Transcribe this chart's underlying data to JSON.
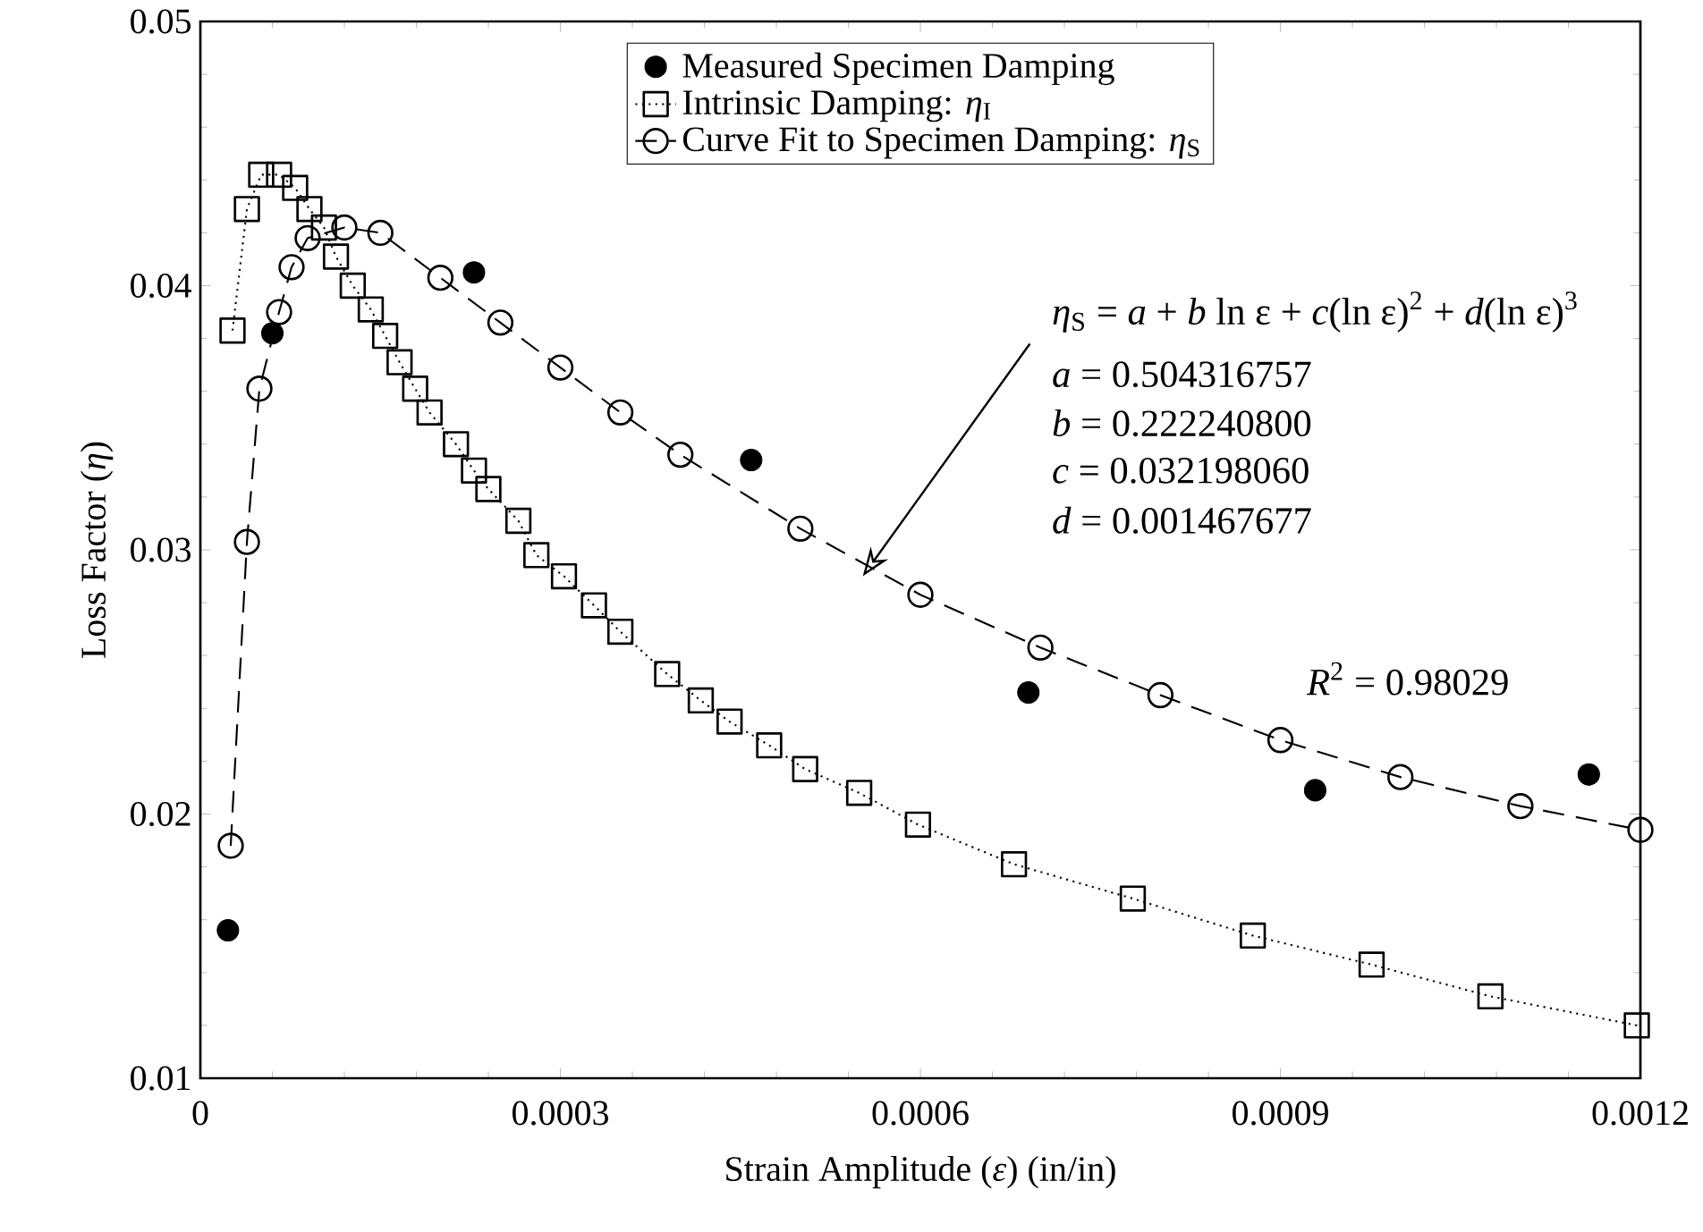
{
  "chart_data": {
    "type": "line",
    "xlabel": "Strain Amplitude (*ε*) (in/in)",
    "ylabel": "Loss Factor (*η*)",
    "xlim": [
      0,
      0.0012
    ],
    "ylim": [
      0.01,
      0.05
    ],
    "xticks": [
      0,
      0.0003,
      0.0006,
      0.0009,
      0.0012
    ],
    "yticks": [
      0.01,
      0.02,
      0.03,
      0.04,
      0.05
    ],
    "legend": "top",
    "grid": false,
    "series": [
      {
        "name": "Measured Specimen Damping",
        "type": "scatter",
        "marker": "circle",
        "color": "#000000",
        "x": [
          2.3e-05,
          6e-05,
          0.000228,
          0.000459,
          0.00069,
          0.000929,
          0.001157
        ],
        "values": [
          0.0156,
          0.0382,
          0.0405,
          0.0334,
          0.0246,
          0.0209,
          0.0215
        ]
      },
      {
        "name": "Intrinsic Damping: *η*$_{I}$",
        "marker": "square",
        "line_style": "dotted",
        "color": "#000000",
        "x": [
          2.68e-05,
          3.88e-05,
          5.07e-05,
          6.56e-05,
          7.9e-05,
          9.09e-05,
          0.000103,
          0.000113,
          0.000127,
          0.000142,
          0.000154,
          0.000166,
          0.000179,
          0.000191,
          0.000213,
          0.000228,
          0.00024,
          0.000265,
          0.00028,
          0.000303,
          0.000328,
          0.00035,
          0.000389,
          0.000417,
          0.000441,
          0.000474,
          0.000504,
          0.000549,
          0.000598,
          0.000678,
          0.000777,
          0.000877,
          0.000976,
          0.001075,
          0.001197
        ],
        "values": [
          0.0383,
          0.0429,
          0.0442,
          0.0442,
          0.0437,
          0.0429,
          0.0422,
          0.0411,
          0.04,
          0.0391,
          0.0381,
          0.0371,
          0.0361,
          0.0352,
          0.034,
          0.033,
          0.0323,
          0.0311,
          0.0298,
          0.029,
          0.0279,
          0.0269,
          0.0253,
          0.0243,
          0.0235,
          0.0226,
          0.0217,
          0.0208,
          0.0196,
          0.0181,
          0.0168,
          0.0154,
          0.0143,
          0.0131,
          0.012
        ]
      },
      {
        "name": "Curve Fit to Specimen Damping: *η*$_{S}$",
        "marker": "circle",
        "line_style": "dashed",
        "color": "#000000",
        "x": [
          2.53e-05,
          3.88e-05,
          4.92e-05,
          6.56e-05,
          7.6e-05,
          8.94e-05,
          0.00012,
          0.00015,
          0.0002,
          0.00025,
          0.0003,
          0.00035,
          0.0004,
          0.0005,
          0.0006,
          0.0007,
          0.0008,
          0.0009,
          0.001,
          0.0011,
          0.0012
        ],
        "values": [
          0.0188,
          0.0303,
          0.0361,
          0.039,
          0.0407,
          0.0418,
          0.0422,
          0.042,
          0.0403,
          0.0386,
          0.0369,
          0.0352,
          0.0336,
          0.0308,
          0.0283,
          0.0263,
          0.0245,
          0.0228,
          0.0214,
          0.0203,
          0.0194
        ]
      }
    ],
    "annotations": [
      "*η*$_{S}$ = *a* + *b* ln ε + *c*(ln ε)$^{2}$ + *d*(ln ε)$^{3}$",
      "*a* = 0.504316757",
      "*b* = 0.222240800",
      "*c* = 0.032198060",
      "*d* = 0.001467677",
      "*R*$^{2}$ = 0.98029"
    ]
  }
}
